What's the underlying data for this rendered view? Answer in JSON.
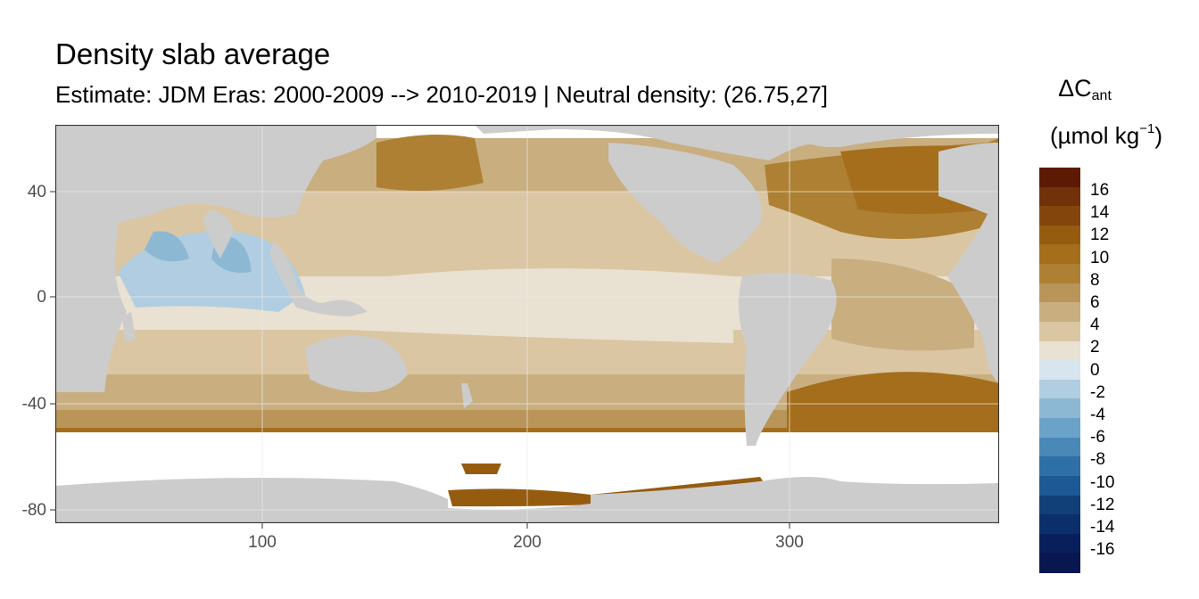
{
  "title": "Density slab average",
  "subtitle": "Estimate: JDM Eras: 2000-2009 --> 2010-2019 | Neutral density: (26.75,27]",
  "legend": {
    "symbol": "ΔC",
    "symbol_sub": "ant",
    "unit_prefix": "(µmol kg",
    "unit_sup": "−1",
    "unit_suffix": ")",
    "labels": [
      "16",
      "14",
      "12",
      "10",
      "8",
      "6",
      "4",
      "2",
      "0",
      "-2",
      "-4",
      "-6",
      "-8",
      "-10",
      "-12",
      "-14",
      "-16"
    ],
    "colors": [
      "#5c1a05",
      "#713109",
      "#84450c",
      "#955c10",
      "#a56e1c",
      "#ad8033",
      "#b9955a",
      "#c9ae80",
      "#dac6a2",
      "#e9e1d2",
      "#d7e5ee",
      "#b1cde1",
      "#8db8d3",
      "#6aa2c8",
      "#4988b7",
      "#2e6fa7",
      "#1d5994",
      "#114078",
      "#0b2f6a",
      "#081f5c",
      "#08174f"
    ]
  },
  "axes": {
    "x_ticks": [
      "100",
      "200",
      "300"
    ],
    "y_ticks": [
      "40",
      "0",
      "-40",
      "-80"
    ],
    "x_range": [
      20,
      380
    ],
    "y_range": [
      -85,
      65
    ]
  },
  "map_colors": {
    "land": "#cccccc",
    "no_data": "#ffffff",
    "panel_border": "#333333"
  }
}
